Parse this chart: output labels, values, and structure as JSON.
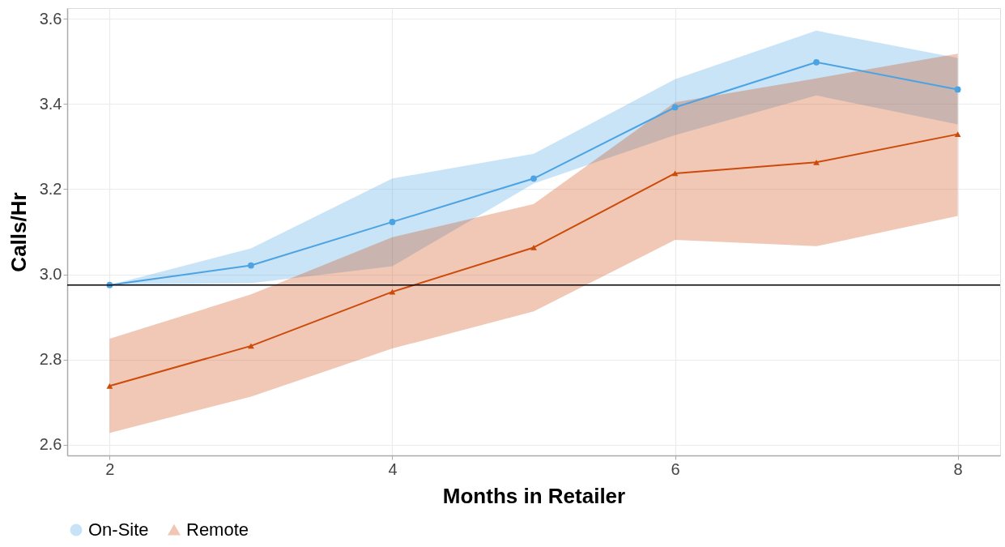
{
  "chart_data": {
    "type": "line",
    "xlabel": "Months in Retailer",
    "ylabel": "Calls/Hr",
    "x": [
      2,
      3,
      4,
      5,
      6,
      7,
      8
    ],
    "series": [
      {
        "name": "On-Site",
        "color": "#4ba3e3",
        "marker": "circle",
        "values": [
          2.975,
          3.021,
          3.123,
          3.225,
          3.392,
          3.498,
          3.434
        ],
        "lower": [
          2.975,
          2.979,
          3.019,
          3.213,
          3.327,
          3.42,
          3.352
        ],
        "upper": [
          2.975,
          3.061,
          3.225,
          3.283,
          3.458,
          3.572,
          3.508
        ]
      },
      {
        "name": "Remote",
        "color": "#cc4a0a",
        "marker": "triangle",
        "values": [
          2.738,
          2.832,
          2.959,
          3.063,
          3.237,
          3.263,
          3.329
        ],
        "lower": [
          2.628,
          2.713,
          2.826,
          2.913,
          3.081,
          3.066,
          3.137
        ],
        "upper": [
          2.849,
          2.953,
          3.087,
          3.165,
          3.404,
          3.46,
          3.518
        ]
      }
    ],
    "xlim": [
      1.7,
      8.3
    ],
    "xticks": [
      2,
      4,
      6,
      8
    ],
    "ylim": [
      2.575,
      3.625
    ],
    "yticks": [
      2.6,
      2.8,
      {
        "value": 3,
        "label": "3.0"
      },
      3.2,
      3.4,
      3.6
    ],
    "ref_lines": [
      {
        "axis": "y",
        "value": 2.975,
        "color": "#000000"
      }
    ],
    "grid": true,
    "legend": "bottom"
  }
}
